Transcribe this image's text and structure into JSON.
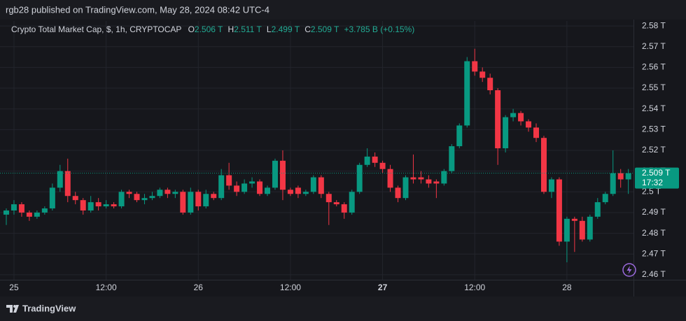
{
  "chart_data": {
    "type": "candlestick",
    "published": "rgb28 published on TradingView.com, May 28, 2024 08:42 UTC-4",
    "title": "Crypto Total Market Cap, $, 1h, CRYPTOCAP",
    "ohlc_legend": {
      "o_label": "O",
      "o": "2.506 T",
      "h_label": "H",
      "h": "2.511 T",
      "l_label": "L",
      "l": "2.499 T",
      "c_label": "C",
      "c": "2.509 T",
      "change": "+3.785 B (+0.15%)"
    },
    "last_price_label": "2.509 T",
    "countdown": "17:32",
    "footer": "TradingView",
    "up_color": "#089981",
    "down_color": "#f23645",
    "grid": true,
    "x": [
      -1,
      0,
      1,
      2,
      3,
      4,
      5,
      6,
      7,
      8,
      9,
      10,
      11,
      12,
      13,
      14,
      15,
      16,
      17,
      18,
      19,
      20,
      21,
      22,
      23,
      24,
      25,
      26,
      27,
      28,
      29,
      30,
      31,
      32,
      33,
      34,
      35,
      36,
      37,
      38,
      39,
      40,
      41,
      42,
      43,
      44,
      45,
      46,
      47,
      48,
      49,
      50,
      51,
      52,
      53,
      54,
      55,
      56,
      57,
      58,
      59,
      60,
      61,
      62,
      63,
      64,
      65,
      66,
      67,
      68,
      69,
      70,
      71,
      72,
      73,
      74,
      75,
      76,
      77,
      78,
      79,
      80
    ],
    "open": [
      2.489,
      2.491,
      2.494,
      2.49,
      2.488,
      2.49,
      2.492,
      2.502,
      2.51,
      2.498,
      2.496,
      2.491,
      2.495,
      2.493,
      2.494,
      2.493,
      2.5,
      2.499,
      2.496,
      2.497,
      2.498,
      2.501,
      2.499,
      2.5,
      2.49,
      2.5,
      2.493,
      2.499,
      2.497,
      2.508,
      2.503,
      2.5,
      2.504,
      2.505,
      2.499,
      2.502,
      2.515,
      2.501,
      2.502,
      2.499,
      2.5,
      2.507,
      2.499,
      2.495,
      2.494,
      2.49,
      2.5,
      2.513,
      2.517,
      2.514,
      2.511,
      2.502,
      2.497,
      2.507,
      2.507,
      2.506,
      2.505,
      2.504,
      2.51,
      2.522,
      2.532,
      2.563,
      2.558,
      2.555,
      2.549,
      2.521,
      2.536,
      2.538,
      2.534,
      2.531,
      2.526,
      2.5,
      2.506,
      2.476,
      2.487,
      2.486,
      2.477,
      2.488,
      2.495,
      2.499,
      2.509,
      2.506
    ],
    "high": [
      2.492,
      2.496,
      2.495,
      2.491,
      2.491,
      2.493,
      2.504,
      2.513,
      2.516,
      2.5,
      2.497,
      2.498,
      2.497,
      2.496,
      2.495,
      2.501,
      2.501,
      2.5,
      2.499,
      2.5,
      2.502,
      2.502,
      2.501,
      2.501,
      2.502,
      2.501,
      2.501,
      2.5,
      2.511,
      2.514,
      2.505,
      2.506,
      2.507,
      2.506,
      2.503,
      2.516,
      2.52,
      2.502,
      2.503,
      2.501,
      2.508,
      2.508,
      2.5,
      2.496,
      2.495,
      2.501,
      2.514,
      2.521,
      2.519,
      2.515,
      2.513,
      2.503,
      2.508,
      2.518,
      2.51,
      2.508,
      2.506,
      2.511,
      2.523,
      2.533,
      2.565,
      2.569,
      2.56,
      2.557,
      2.55,
      2.537,
      2.54,
      2.539,
      2.535,
      2.533,
      2.527,
      2.507,
      2.507,
      2.488,
      2.488,
      2.488,
      2.489,
      2.497,
      2.5,
      2.52,
      2.511,
      2.511
    ],
    "low": [
      2.484,
      2.489,
      2.488,
      2.486,
      2.487,
      2.489,
      2.491,
      2.5,
      2.495,
      2.494,
      2.489,
      2.49,
      2.491,
      2.492,
      2.492,
      2.492,
      2.497,
      2.495,
      2.494,
      2.496,
      2.497,
      2.497,
      2.497,
      2.489,
      2.489,
      2.491,
      2.492,
      2.496,
      2.496,
      2.501,
      2.498,
      2.499,
      2.502,
      2.498,
      2.498,
      2.501,
      2.496,
      2.498,
      2.497,
      2.498,
      2.499,
      2.497,
      2.484,
      2.493,
      2.487,
      2.489,
      2.499,
      2.512,
      2.512,
      2.509,
      2.5,
      2.495,
      2.496,
      2.504,
      2.504,
      2.502,
      2.497,
      2.503,
      2.509,
      2.521,
      2.531,
      2.556,
      2.553,
      2.547,
      2.513,
      2.519,
      2.534,
      2.532,
      2.529,
      2.524,
      2.499,
      2.497,
      2.474,
      2.466,
      2.471,
      2.476,
      2.476,
      2.487,
      2.494,
      2.498,
      2.502,
      2.499
    ],
    "close": [
      2.491,
      2.494,
      2.49,
      2.488,
      2.49,
      2.492,
      2.502,
      2.51,
      2.498,
      2.496,
      2.491,
      2.495,
      2.493,
      2.494,
      2.493,
      2.5,
      2.499,
      2.496,
      2.497,
      2.498,
      2.501,
      2.499,
      2.5,
      2.49,
      2.5,
      2.493,
      2.499,
      2.497,
      2.508,
      2.503,
      2.5,
      2.504,
      2.505,
      2.499,
      2.502,
      2.515,
      2.501,
      2.499,
      2.499,
      2.5,
      2.507,
      2.499,
      2.495,
      2.494,
      2.49,
      2.5,
      2.513,
      2.517,
      2.514,
      2.511,
      2.502,
      2.497,
      2.507,
      2.506,
      2.506,
      2.504,
      2.504,
      2.51,
      2.522,
      2.532,
      2.563,
      2.558,
      2.555,
      2.549,
      2.521,
      2.536,
      2.538,
      2.534,
      2.531,
      2.526,
      2.5,
      2.506,
      2.476,
      2.487,
      2.486,
      2.477,
      2.488,
      2.495,
      2.499,
      2.509,
      2.506,
      2.509
    ],
    "xlim": [
      -1.82,
      80.67
    ],
    "xticks": [
      {
        "value": 0,
        "label": "25"
      },
      {
        "value": 12,
        "label": "12:00"
      },
      {
        "value": 24,
        "label": "26"
      },
      {
        "value": 36,
        "label": "12:00"
      },
      {
        "value": 48,
        "label": "27"
      },
      {
        "value": 60,
        "label": "12:00"
      },
      {
        "value": 72,
        "label": "28"
      }
    ],
    "ylim": [
      2.4576,
      2.5824
    ],
    "yticks": [
      {
        "value": 2.46,
        "label": "2.46 T"
      },
      {
        "value": 2.47,
        "label": "2.47 T"
      },
      {
        "value": 2.48,
        "label": "2.48 T"
      },
      {
        "value": 2.49,
        "label": "2.49 T"
      },
      {
        "value": 2.5,
        "label": "2.5 T"
      },
      {
        "value": 2.51,
        "label": "2.51 T"
      },
      {
        "value": 2.52,
        "label": "2.52 T"
      },
      {
        "value": 2.53,
        "label": "2.53 T"
      },
      {
        "value": 2.54,
        "label": "2.54 T"
      },
      {
        "value": 2.55,
        "label": "2.55 T"
      },
      {
        "value": 2.56,
        "label": "2.56 T"
      },
      {
        "value": 2.57,
        "label": "2.57 T"
      },
      {
        "value": 2.58,
        "label": "2.58 T"
      }
    ]
  }
}
